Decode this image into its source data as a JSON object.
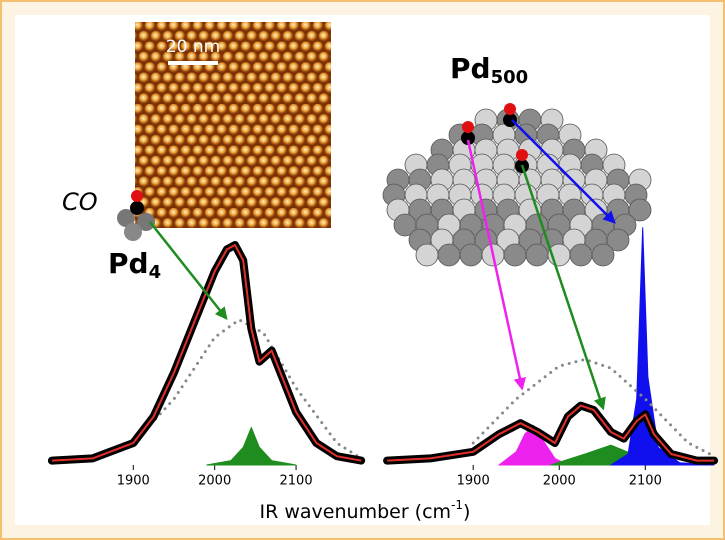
{
  "figure": {
    "scale_bar": "20 nm",
    "large_cluster": {
      "base": "Pd",
      "sub": "500"
    },
    "molecule": "CO",
    "small_cluster": {
      "base": "Pd",
      "sub": "4"
    },
    "x_label": {
      "text": "IR wavenumber (cm",
      "sup": "-1",
      "end": ")"
    }
  },
  "chart_data": [
    {
      "type": "line",
      "xlim": [
        1794,
        2181
      ],
      "xticks": [
        1900,
        2000,
        2100
      ],
      "ylim": [
        0,
        1.2
      ],
      "series": [
        {
          "style": "dotted",
          "color": "#888888",
          "x": [
            1850,
            1900,
            1950,
            2000,
            2030,
            2060,
            2100,
            2150,
            2180
          ],
          "values": [
            0.02,
            0.1,
            0.3,
            0.58,
            0.66,
            0.6,
            0.35,
            0.1,
            0.03
          ]
        },
        {
          "style": "fill",
          "color": "#1e8c1e",
          "x": [
            1990,
            2020,
            2035,
            2045,
            2055,
            2070,
            2100
          ],
          "values": [
            0,
            0.02,
            0.08,
            0.17,
            0.08,
            0.02,
            0
          ]
        },
        {
          "style": "data",
          "color": "#e0302a",
          "x": [
            1800,
            1850,
            1900,
            1925,
            1950,
            1975,
            2000,
            2015,
            2025,
            2035,
            2045,
            2055,
            2070,
            2085,
            2100,
            2125,
            2150,
            2180
          ],
          "values": [
            0.02,
            0.03,
            0.1,
            0.22,
            0.42,
            0.65,
            0.88,
            0.98,
            1.0,
            0.93,
            0.62,
            0.47,
            0.52,
            0.38,
            0.24,
            0.1,
            0.04,
            0.02
          ]
        }
      ]
    },
    {
      "type": "line",
      "xlim": [
        1801,
        2181
      ],
      "xticks": [
        1900,
        2000,
        2100
      ],
      "ylim": [
        0,
        1.2
      ],
      "series": [
        {
          "style": "fill",
          "color": "#ee22ee",
          "x": [
            1930,
            1950,
            1960,
            1970,
            1980,
            1995,
            2010
          ],
          "values": [
            0,
            0.06,
            0.14,
            0.18,
            0.12,
            0.03,
            0
          ]
        },
        {
          "style": "fill",
          "color": "#1e8c1e",
          "x": [
            1990,
            2030,
            2060,
            2085,
            2110
          ],
          "values": [
            0,
            0.05,
            0.09,
            0.05,
            0
          ]
        },
        {
          "style": "fill",
          "color": "#1010ee",
          "x": [
            2060,
            2080,
            2090,
            2097,
            2103,
            2115,
            2140,
            2180
          ],
          "values": [
            0,
            0.05,
            0.3,
            1.08,
            0.4,
            0.08,
            0.01,
            0
          ]
        },
        {
          "style": "dotted",
          "color": "#888888",
          "x": [
            1900,
            1950,
            2000,
            2030,
            2060,
            2100,
            2150,
            2180
          ],
          "values": [
            0.1,
            0.3,
            0.45,
            0.48,
            0.44,
            0.3,
            0.1,
            0.04
          ]
        },
        {
          "style": "data",
          "color": "#e0302a",
          "x": [
            1800,
            1850,
            1900,
            1930,
            1955,
            1975,
            1995,
            2010,
            2025,
            2040,
            2060,
            2075,
            2090,
            2100,
            2110,
            2130,
            2160,
            2180
          ],
          "values": [
            0.02,
            0.03,
            0.06,
            0.14,
            0.19,
            0.15,
            0.1,
            0.22,
            0.27,
            0.25,
            0.15,
            0.12,
            0.2,
            0.23,
            0.14,
            0.05,
            0.02,
            0.02
          ]
        }
      ]
    }
  ]
}
